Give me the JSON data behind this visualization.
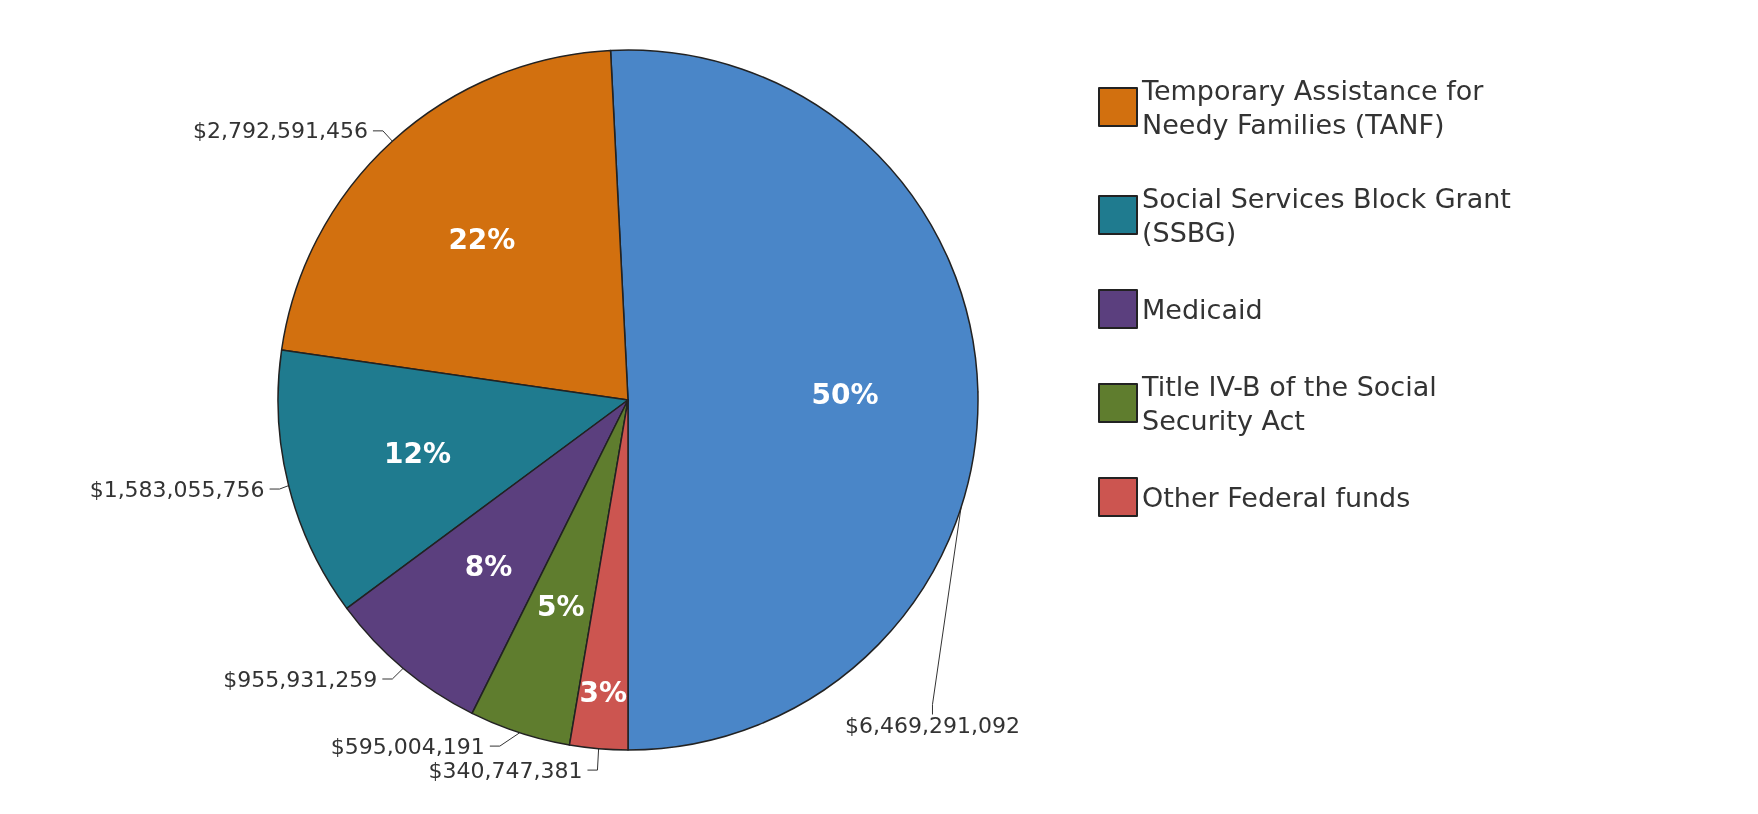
{
  "chart_data": {
    "type": "pie",
    "categories": [
      null,
      "Temporary Assistance for Needy Families (TANF)",
      "Social Services Block Grant (SSBG)",
      "Medicaid",
      "Title IV-B of the Social Security Act",
      "Other Federal funds"
    ],
    "values": [
      6469291092,
      2792591456,
      1583055756,
      955931259,
      595004191,
      340747381
    ],
    "colors": [
      "#4a86c8",
      "#d2700f",
      "#1f7b8f",
      "#5b3f7e",
      "#5f7d2e",
      "#cc5550"
    ],
    "value_labels": [
      "$6,469,291,092",
      "$2,792,591,456",
      "$1,583,055,756",
      "$955,931,259",
      "$595,004,191",
      "$340,747,381"
    ],
    "annotations": [
      "50%",
      "22%",
      "12%",
      "8%",
      "5%",
      "3%"
    ],
    "legend": "top right"
  }
}
